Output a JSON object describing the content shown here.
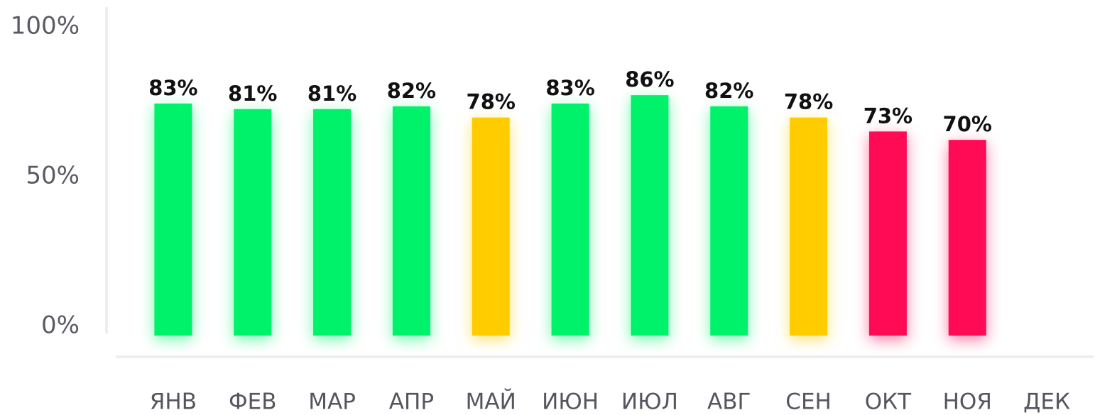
{
  "chart_data": {
    "type": "bar",
    "categories": [
      "ЯНВ",
      "ФЕВ",
      "МАР",
      "АПР",
      "МАЙ",
      "ИЮН",
      "ИЮЛ",
      "АВГ",
      "СЕН",
      "ОКТ",
      "НОЯ",
      "ДЕК"
    ],
    "values": [
      83,
      81,
      81,
      82,
      78,
      83,
      86,
      82,
      78,
      73,
      70,
      null
    ],
    "value_labels": [
      "83%",
      "81%",
      "81%",
      "82%",
      "78%",
      "83%",
      "86%",
      "82%",
      "78%",
      "73%",
      "70%",
      null
    ],
    "colors": [
      "#00f26b",
      "#00f26b",
      "#00f26b",
      "#00f26b",
      "#ffcc00",
      "#00f26b",
      "#00f26b",
      "#00f26b",
      "#ffcc00",
      "#ff0a55",
      "#ff0a55",
      null
    ],
    "ylim": [
      0,
      100
    ],
    "yticks": [
      {
        "value": 0,
        "label": "0%"
      },
      {
        "value": 50,
        "label": "50%"
      },
      {
        "value": 100,
        "label": "100%"
      }
    ]
  }
}
